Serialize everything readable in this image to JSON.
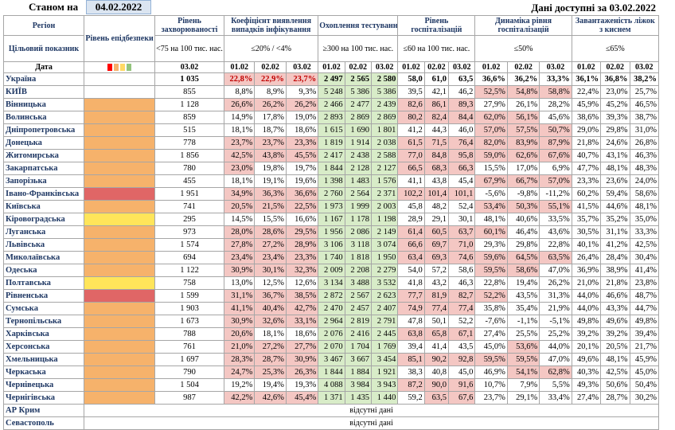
{
  "header": {
    "as_of_label": "Станом на",
    "as_of_date": "04.02.2022",
    "available": "Дані доступні за  03.02.2022"
  },
  "columns": {
    "region": "Регіон",
    "target": "Цільовий показник",
    "date": "Дата",
    "level": "Рівень епідбезпеки",
    "incidence": "Рівень захворюваності",
    "incidence_target": "<75 на 100 тис. нас.",
    "detection": "Коефіцієнт виявлення випадків інфікування",
    "detection_target": "≤20% / <4%",
    "testing": "Охоплення тестуванням",
    "testing_target": "≥300 на 100 тис. нас.",
    "hosp": "Рівень госпіталізацій",
    "hosp_target": "≤60 на 100 тис. нас.",
    "dyn": "Динаміка рівня госпіталізацій",
    "dyn_target": "≤50%",
    "beds": "Завантаженість ліжок з киснем",
    "beds_target": "≤65%"
  },
  "legend_colors": [
    "#ff0000",
    "#f6b26b",
    "#ffd966",
    "#93c47d"
  ],
  "dates": {
    "d1": "03.02",
    "d2": "01.02",
    "d3": "02.02",
    "d4": "03.02"
  },
  "ukraine": {
    "name": "Україна",
    "inc": "1 035",
    "det": [
      "22,8%",
      "22,9%",
      "23,7%"
    ],
    "test": [
      "2 497",
      "2 565",
      "2 580"
    ],
    "hosp": [
      "58,0",
      "61,0",
      "63,5"
    ],
    "dyn": [
      "36,6%",
      "36,2%",
      "33,3%"
    ],
    "beds": [
      "36,1%",
      "36,8%",
      "38,2%"
    ]
  },
  "rows": [
    {
      "name": "КИЇВ",
      "lvl": "",
      "inc": "855",
      "det": [
        "8,8%",
        "8,9%",
        "9,3%"
      ],
      "test": [
        "5 248",
        "5 386",
        "5 386"
      ],
      "hosp": [
        "39,5",
        "42,1",
        "46,2"
      ],
      "dyn": [
        "52,5%",
        "54,8%",
        "58,8%"
      ],
      "beds": [
        "22,4%",
        "23,0%",
        "25,7%"
      ],
      "hc": [
        0,
        0,
        0
      ],
      "dc": [
        1,
        1,
        1
      ]
    },
    {
      "name": "Вінницька",
      "lvl": "orange",
      "inc": "1 128",
      "det": [
        "26,6%",
        "26,2%",
        "26,2%"
      ],
      "test": [
        "2 466",
        "2 477",
        "2 439"
      ],
      "hosp": [
        "82,6",
        "86,1",
        "89,3"
      ],
      "dyn": [
        "27,9%",
        "26,1%",
        "28,2%"
      ],
      "beds": [
        "45,9%",
        "45,2%",
        "46,5%"
      ],
      "hc": [
        1,
        1,
        1
      ],
      "dc": [
        0,
        0,
        0
      ]
    },
    {
      "name": "Волинська",
      "lvl": "orange",
      "inc": "859",
      "det": [
        "14,9%",
        "17,8%",
        "19,0%"
      ],
      "test": [
        "2 893",
        "2 869",
        "2 869"
      ],
      "hosp": [
        "80,2",
        "82,4",
        "84,4"
      ],
      "dyn": [
        "62,0%",
        "56,1%",
        "45,6%"
      ],
      "beds": [
        "38,6%",
        "39,3%",
        "38,7%"
      ],
      "hc": [
        1,
        1,
        1
      ],
      "dc": [
        1,
        1,
        0
      ]
    },
    {
      "name": "Дніпропетровська",
      "lvl": "orange",
      "inc": "515",
      "det": [
        "18,1%",
        "18,7%",
        "18,6%"
      ],
      "test": [
        "1 615",
        "1 690",
        "1 801"
      ],
      "hosp": [
        "41,2",
        "44,3",
        "46,0"
      ],
      "dyn": [
        "57,0%",
        "57,5%",
        "50,7%"
      ],
      "beds": [
        "29,0%",
        "29,8%",
        "31,0%"
      ],
      "hc": [
        0,
        0,
        0
      ],
      "dc": [
        1,
        1,
        1
      ]
    },
    {
      "name": "Донецька",
      "lvl": "orange",
      "inc": "778",
      "det": [
        "23,7%",
        "23,7%",
        "23,3%"
      ],
      "test": [
        "1 819",
        "1 914",
        "2 038"
      ],
      "hosp": [
        "61,5",
        "71,5",
        "76,4"
      ],
      "dyn": [
        "82,0%",
        "83,9%",
        "87,9%"
      ],
      "beds": [
        "21,8%",
        "24,6%",
        "26,8%"
      ],
      "hc": [
        1,
        1,
        1
      ],
      "dc": [
        1,
        1,
        1
      ]
    },
    {
      "name": "Житомирська",
      "lvl": "orange",
      "inc": "1 856",
      "det": [
        "42,5%",
        "43,8%",
        "45,5%"
      ],
      "test": [
        "2 417",
        "2 438",
        "2 588"
      ],
      "hosp": [
        "77,0",
        "84,8",
        "95,8"
      ],
      "dyn": [
        "59,0%",
        "62,6%",
        "67,6%"
      ],
      "beds": [
        "40,7%",
        "43,1%",
        "46,3%"
      ],
      "hc": [
        1,
        1,
        1
      ],
      "dc": [
        1,
        1,
        1
      ]
    },
    {
      "name": "Закарпатська",
      "lvl": "orange",
      "inc": "780",
      "det": [
        "23,0%",
        "19,8%",
        "19,7%"
      ],
      "test": [
        "1 844",
        "2 128",
        "2 127"
      ],
      "hosp": [
        "66,5",
        "68,3",
        "66,3"
      ],
      "dyn": [
        "15,5%",
        "17,0%",
        "6,9%"
      ],
      "beds": [
        "47,7%",
        "48,1%",
        "48,3%"
      ],
      "hc": [
        1,
        1,
        1
      ],
      "dc": [
        0,
        0,
        0
      ]
    },
    {
      "name": "Запорізька",
      "lvl": "orange",
      "inc": "455",
      "det": [
        "18,1%",
        "19,1%",
        "19,6%"
      ],
      "test": [
        "1 398",
        "1 483",
        "1 576"
      ],
      "hosp": [
        "41,1",
        "43,8",
        "45,4"
      ],
      "dyn": [
        "67,9%",
        "66,7%",
        "57,0%"
      ],
      "beds": [
        "23,3%",
        "23,6%",
        "24,0%"
      ],
      "hc": [
        0,
        0,
        0
      ],
      "dc": [
        1,
        1,
        1
      ]
    },
    {
      "name": "Івано-Франківська",
      "lvl": "red",
      "inc": "1 951",
      "det": [
        "34,9%",
        "36,3%",
        "36,6%"
      ],
      "test": [
        "2 760",
        "2 564",
        "2 371"
      ],
      "hosp": [
        "102,2",
        "101,4",
        "101,1"
      ],
      "dyn": [
        "-5,6%",
        "-9,8%",
        "-11,2%"
      ],
      "beds": [
        "60,2%",
        "59,4%",
        "58,6%"
      ],
      "hc": [
        1,
        1,
        1
      ],
      "dc": [
        0,
        0,
        0
      ]
    },
    {
      "name": "Київська",
      "lvl": "orange",
      "inc": "741",
      "det": [
        "20,5%",
        "21,5%",
        "22,5%"
      ],
      "test": [
        "1 973",
        "1 999",
        "2 003"
      ],
      "hosp": [
        "45,8",
        "48,2",
        "52,4"
      ],
      "dyn": [
        "53,4%",
        "50,3%",
        "55,1%"
      ],
      "beds": [
        "41,5%",
        "44,6%",
        "48,1%"
      ],
      "hc": [
        0,
        0,
        0
      ],
      "dc": [
        1,
        1,
        1
      ]
    },
    {
      "name": "Кіровоградська",
      "lvl": "yellow",
      "inc": "295",
      "det": [
        "14,5%",
        "15,5%",
        "16,6%"
      ],
      "test": [
        "1 167",
        "1 178",
        "1 198"
      ],
      "hosp": [
        "28,9",
        "29,1",
        "30,1"
      ],
      "dyn": [
        "48,1%",
        "40,6%",
        "33,5%"
      ],
      "beds": [
        "35,7%",
        "35,2%",
        "35,0%"
      ],
      "hc": [
        0,
        0,
        0
      ],
      "dc": [
        0,
        0,
        0
      ]
    },
    {
      "name": "Луганська",
      "lvl": "orange",
      "inc": "973",
      "det": [
        "28,0%",
        "28,6%",
        "29,5%"
      ],
      "test": [
        "1 956",
        "2 086",
        "2 149"
      ],
      "hosp": [
        "61,4",
        "60,5",
        "63,7"
      ],
      "dyn": [
        "60,1%",
        "46,4%",
        "43,6%"
      ],
      "beds": [
        "30,5%",
        "31,1%",
        "33,3%"
      ],
      "hc": [
        1,
        1,
        1
      ],
      "dc": [
        1,
        0,
        0
      ]
    },
    {
      "name": "Львівська",
      "lvl": "orange",
      "inc": "1 574",
      "det": [
        "27,8%",
        "27,2%",
        "28,9%"
      ],
      "test": [
        "3 106",
        "3 118",
        "3 074"
      ],
      "hosp": [
        "66,6",
        "69,7",
        "71,0"
      ],
      "dyn": [
        "29,3%",
        "29,8%",
        "22,8%"
      ],
      "beds": [
        "40,1%",
        "41,2%",
        "42,5%"
      ],
      "hc": [
        1,
        1,
        1
      ],
      "dc": [
        0,
        0,
        0
      ]
    },
    {
      "name": "Миколаївська",
      "lvl": "orange",
      "inc": "694",
      "det": [
        "23,4%",
        "23,4%",
        "23,3%"
      ],
      "test": [
        "1 740",
        "1 818",
        "1 950"
      ],
      "hosp": [
        "63,4",
        "69,3",
        "74,6"
      ],
      "dyn": [
        "59,6%",
        "64,5%",
        "63,5%"
      ],
      "beds": [
        "26,4%",
        "28,4%",
        "30,4%"
      ],
      "hc": [
        1,
        1,
        1
      ],
      "dc": [
        1,
        1,
        1
      ]
    },
    {
      "name": "Одеська",
      "lvl": "orange",
      "inc": "1 122",
      "det": [
        "30,9%",
        "30,1%",
        "32,3%"
      ],
      "test": [
        "2 009",
        "2 208",
        "2 279"
      ],
      "hosp": [
        "54,0",
        "57,2",
        "58,6"
      ],
      "dyn": [
        "59,5%",
        "58,6%",
        "47,0%"
      ],
      "beds": [
        "36,9%",
        "38,9%",
        "41,4%"
      ],
      "hc": [
        0,
        0,
        0
      ],
      "dc": [
        1,
        1,
        0
      ]
    },
    {
      "name": "Полтавська",
      "lvl": "yellow",
      "inc": "758",
      "det": [
        "13,0%",
        "12,5%",
        "12,6%"
      ],
      "test": [
        "3 134",
        "3 488",
        "3 532"
      ],
      "hosp": [
        "41,8",
        "43,2",
        "46,3"
      ],
      "dyn": [
        "22,8%",
        "19,4%",
        "26,2%"
      ],
      "beds": [
        "21,0%",
        "21,8%",
        "23,8%"
      ],
      "hc": [
        0,
        0,
        0
      ],
      "dc": [
        0,
        0,
        0
      ]
    },
    {
      "name": "Рівненська",
      "lvl": "red",
      "inc": "1 599",
      "det": [
        "31,1%",
        "36,7%",
        "38,5%"
      ],
      "test": [
        "2 872",
        "2 567",
        "2 623"
      ],
      "hosp": [
        "77,7",
        "81,9",
        "82,7"
      ],
      "dyn": [
        "52,2%",
        "43,5%",
        "31,3%"
      ],
      "beds": [
        "44,0%",
        "46,6%",
        "48,7%"
      ],
      "hc": [
        1,
        1,
        1
      ],
      "dc": [
        1,
        0,
        0
      ]
    },
    {
      "name": "Сумська",
      "lvl": "orange",
      "inc": "1 903",
      "det": [
        "41,1%",
        "40,4%",
        "42,7%"
      ],
      "test": [
        "2 470",
        "2 457",
        "2 407"
      ],
      "hosp": [
        "74,9",
        "77,4",
        "77,4"
      ],
      "dyn": [
        "35,8%",
        "35,4%",
        "21,9%"
      ],
      "beds": [
        "44,0%",
        "43,3%",
        "44,7%"
      ],
      "hc": [
        1,
        1,
        1
      ],
      "dc": [
        0,
        0,
        0
      ]
    },
    {
      "name": "Тернопільська",
      "lvl": "orange",
      "inc": "1 673",
      "det": [
        "30,9%",
        "32,6%",
        "33,1%"
      ],
      "test": [
        "2 964",
        "2 819",
        "2 791"
      ],
      "hosp": [
        "47,8",
        "50,1",
        "52,2"
      ],
      "dyn": [
        "-7,6%",
        "-1,1%",
        "-5,1%"
      ],
      "beds": [
        "49,8%",
        "49,6%",
        "49,8%"
      ],
      "hc": [
        0,
        0,
        0
      ],
      "dc": [
        0,
        0,
        0
      ]
    },
    {
      "name": "Харківська",
      "lvl": "orange",
      "inc": "788",
      "det": [
        "20,6%",
        "18,1%",
        "18,6%"
      ],
      "test": [
        "2 076",
        "2 416",
        "2 445"
      ],
      "hosp": [
        "63,8",
        "65,8",
        "67,1"
      ],
      "dyn": [
        "27,4%",
        "25,5%",
        "25,2%"
      ],
      "beds": [
        "39,2%",
        "39,2%",
        "39,4%"
      ],
      "hc": [
        1,
        1,
        1
      ],
      "dc": [
        0,
        0,
        0
      ]
    },
    {
      "name": "Херсонська",
      "lvl": "orange",
      "inc": "761",
      "det": [
        "21,0%",
        "27,2%",
        "27,7%"
      ],
      "test": [
        "2 070",
        "1 704",
        "1 769"
      ],
      "hosp": [
        "39,4",
        "41,4",
        "43,5"
      ],
      "dyn": [
        "45,0%",
        "53,6%",
        "44,0%"
      ],
      "beds": [
        "20,1%",
        "20,5%",
        "21,7%"
      ],
      "hc": [
        0,
        0,
        0
      ],
      "dc": [
        0,
        1,
        0
      ]
    },
    {
      "name": "Хмельницька",
      "lvl": "orange",
      "inc": "1 697",
      "det": [
        "28,3%",
        "28,7%",
        "30,9%"
      ],
      "test": [
        "3 467",
        "3 667",
        "3 454"
      ],
      "hosp": [
        "85,1",
        "90,2",
        "92,8"
      ],
      "dyn": [
        "59,5%",
        "59,5%",
        "47,0%"
      ],
      "beds": [
        "49,6%",
        "48,1%",
        "45,9%"
      ],
      "hc": [
        1,
        1,
        1
      ],
      "dc": [
        1,
        1,
        0
      ]
    },
    {
      "name": "Черкаська",
      "lvl": "orange",
      "inc": "790",
      "det": [
        "24,7%",
        "25,3%",
        "26,3%"
      ],
      "test": [
        "1 844",
        "1 884",
        "1 921"
      ],
      "hosp": [
        "38,3",
        "40,8",
        "45,0"
      ],
      "dyn": [
        "46,9%",
        "54,1%",
        "62,8%"
      ],
      "beds": [
        "40,3%",
        "42,5%",
        "45,0%"
      ],
      "hc": [
        0,
        0,
        0
      ],
      "dc": [
        0,
        1,
        1
      ]
    },
    {
      "name": "Чернівецька",
      "lvl": "orange",
      "inc": "1 504",
      "det": [
        "19,2%",
        "19,4%",
        "19,3%"
      ],
      "test": [
        "4 088",
        "3 984",
        "3 943"
      ],
      "hosp": [
        "87,2",
        "90,0",
        "91,6"
      ],
      "dyn": [
        "10,7%",
        "7,9%",
        "5,5%"
      ],
      "beds": [
        "49,3%",
        "50,6%",
        "50,4%"
      ],
      "hc": [
        1,
        1,
        1
      ],
      "dc": [
        0,
        0,
        0
      ]
    },
    {
      "name": "Чернігівська",
      "lvl": "orange",
      "inc": "987",
      "det": [
        "42,2%",
        "42,6%",
        "45,4%"
      ],
      "test": [
        "1 371",
        "1 435",
        "1 440"
      ],
      "hosp": [
        "59,2",
        "63,5",
        "67,6"
      ],
      "dyn": [
        "23,7%",
        "29,1%",
        "33,4%"
      ],
      "beds": [
        "27,4%",
        "28,7%",
        "30,2%"
      ],
      "hc": [
        0,
        1,
        1
      ],
      "dc": [
        0,
        0,
        0
      ]
    }
  ],
  "missing_rows": [
    {
      "name": "АР Крим",
      "text": "відсутні дані"
    },
    {
      "name": "Севастополь",
      "text": "відсутні дані"
    }
  ]
}
